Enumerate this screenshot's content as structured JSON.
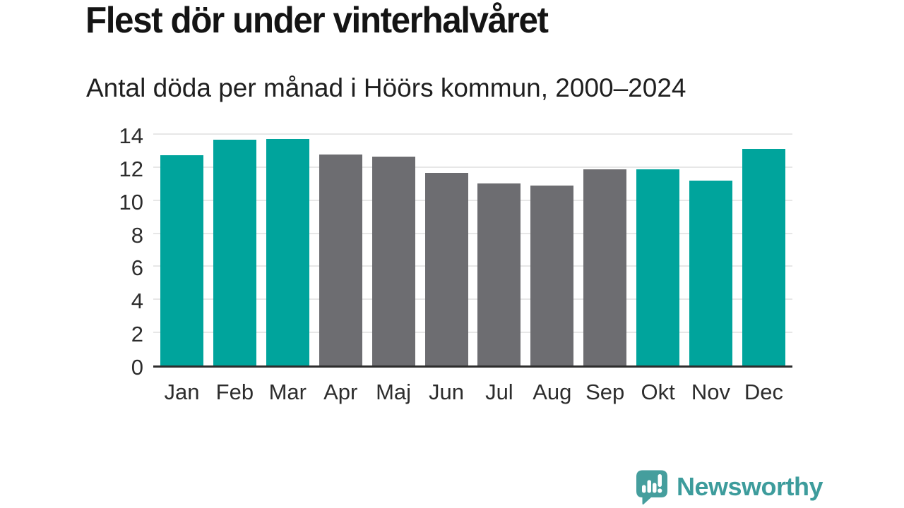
{
  "header": {
    "title": "Flest dör under vinterhalvåret",
    "subtitle": "Antal döda per månad i Höörs kommun, 2000–2024"
  },
  "chart_data": {
    "type": "bar",
    "title": "Flest dör under vinterhalvåret",
    "subtitle": "Antal döda per månad i Höörs kommun, 2000–2024",
    "categories": [
      "Jan",
      "Feb",
      "Mar",
      "Apr",
      "Maj",
      "Jun",
      "Jul",
      "Aug",
      "Sep",
      "Okt",
      "Nov",
      "Dec"
    ],
    "values": [
      12.7,
      13.65,
      13.7,
      12.75,
      12.65,
      11.65,
      11.0,
      10.9,
      11.85,
      11.85,
      11.2,
      13.1
    ],
    "bar_colors": [
      "#00a49c",
      "#00a49c",
      "#00a49c",
      "#6d6d71",
      "#6d6d71",
      "#6d6d71",
      "#6d6d71",
      "#6d6d71",
      "#6d6d71",
      "#00a49c",
      "#00a49c",
      "#00a49c"
    ],
    "highlight_color": "#00a49c",
    "muted_color": "#6d6d71",
    "xlabel": "",
    "ylabel": "",
    "ylim": [
      0,
      14
    ],
    "yticks": [
      0,
      2,
      4,
      6,
      8,
      10,
      12,
      14
    ],
    "grid": true,
    "legend": false,
    "gridline_color": "#e7e7e7",
    "axis_color": "#2d2d2d"
  },
  "footer": {
    "brand": "Newsworthy",
    "brand_color": "#3d9c9c",
    "logo_color": "#459e9d",
    "logo_icon": "bar-chart-speech-bubble-icon"
  }
}
